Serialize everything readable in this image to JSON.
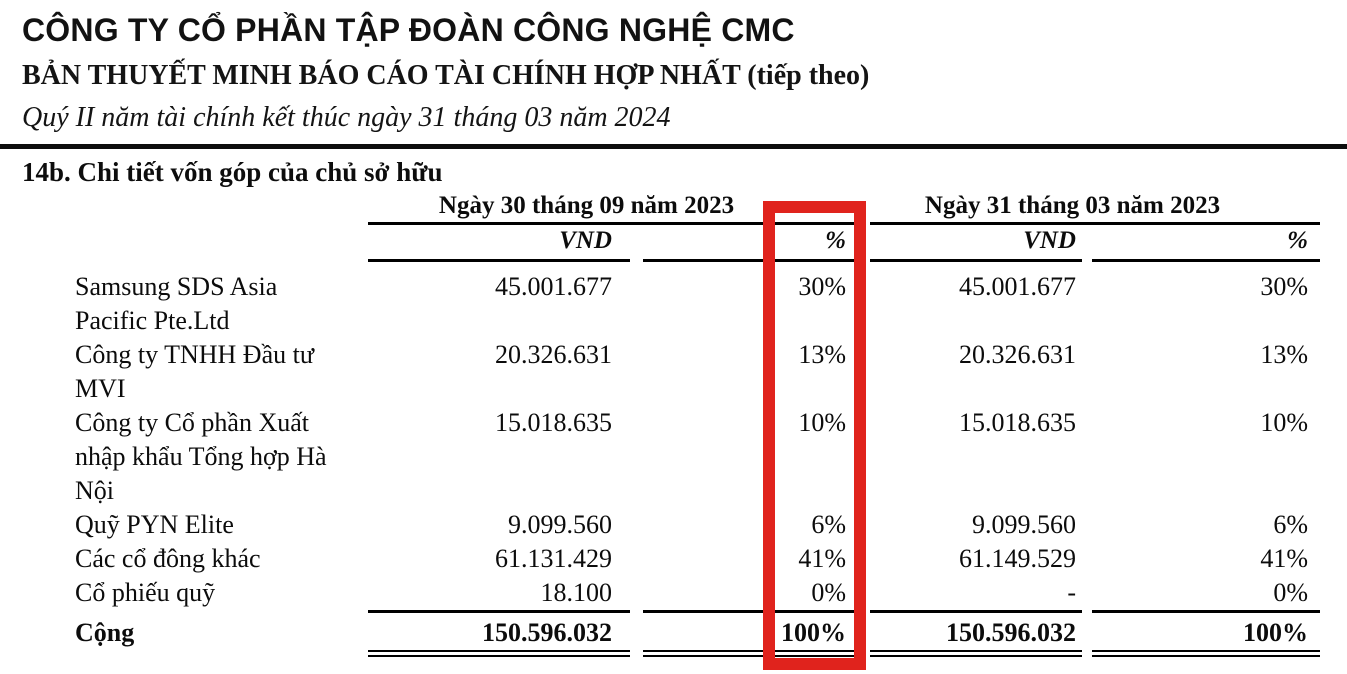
{
  "document": {
    "company_name": "CÔNG TY CỔ PHẦN TẬP ĐOÀN CÔNG NGHỆ CMC",
    "report_title": "BẢN THUYẾT MINH BÁO CÁO TÀI CHÍNH HỢP NHẤT (tiếp theo)",
    "period_line": "Quý II năm tài chính kết thúc ngày 31 tháng 03 năm 2024",
    "section_heading": "14b. Chi tiết vốn góp của chủ sở hữu"
  },
  "table": {
    "column_groups": [
      {
        "label": "Ngày 30 tháng 09 năm 2023",
        "columns": [
          "VND",
          "%"
        ]
      },
      {
        "label": "Ngày 31 tháng 03 năm 2023",
        "columns": [
          "VND",
          "%"
        ]
      }
    ],
    "rows": [
      {
        "label": "Samsung SDS Asia\nPacific Pte.Ltd",
        "vnd_2023_09": "45.001.677",
        "pct_2023_09": "30%",
        "vnd_2023_03": "45.001.677",
        "pct_2023_03": "30%"
      },
      {
        "label": "Công ty TNHH Đầu tư\nMVI",
        "vnd_2023_09": "20.326.631",
        "pct_2023_09": "13%",
        "vnd_2023_03": "20.326.631",
        "pct_2023_03": "13%"
      },
      {
        "label": "Công ty Cổ phần Xuất\nnhập khẩu Tổng hợp Hà\nNội",
        "vnd_2023_09": "15.018.635",
        "pct_2023_09": "10%",
        "vnd_2023_03": "15.018.635",
        "pct_2023_03": "10%"
      },
      {
        "label": "Quỹ PYN Elite",
        "vnd_2023_09": "9.099.560",
        "pct_2023_09": "6%",
        "vnd_2023_03": "9.099.560",
        "pct_2023_03": "6%"
      },
      {
        "label": "Các cổ đông khác",
        "vnd_2023_09": "61.131.429",
        "pct_2023_09": "41%",
        "vnd_2023_03": "61.149.529",
        "pct_2023_03": "41%"
      },
      {
        "label": "Cổ phiếu quỹ",
        "vnd_2023_09": "18.100",
        "pct_2023_09": "0%",
        "vnd_2023_03": "-",
        "pct_2023_03": "0%"
      }
    ],
    "total": {
      "label": "Cộng",
      "vnd_2023_09": "150.596.032",
      "pct_2023_09": "100%",
      "vnd_2023_03": "150.596.032",
      "pct_2023_03": "100%"
    }
  },
  "annotation": {
    "highlight_color": "#e0231d",
    "highlighted_column": "% (Ngày 30 tháng 09 năm 2023)"
  }
}
